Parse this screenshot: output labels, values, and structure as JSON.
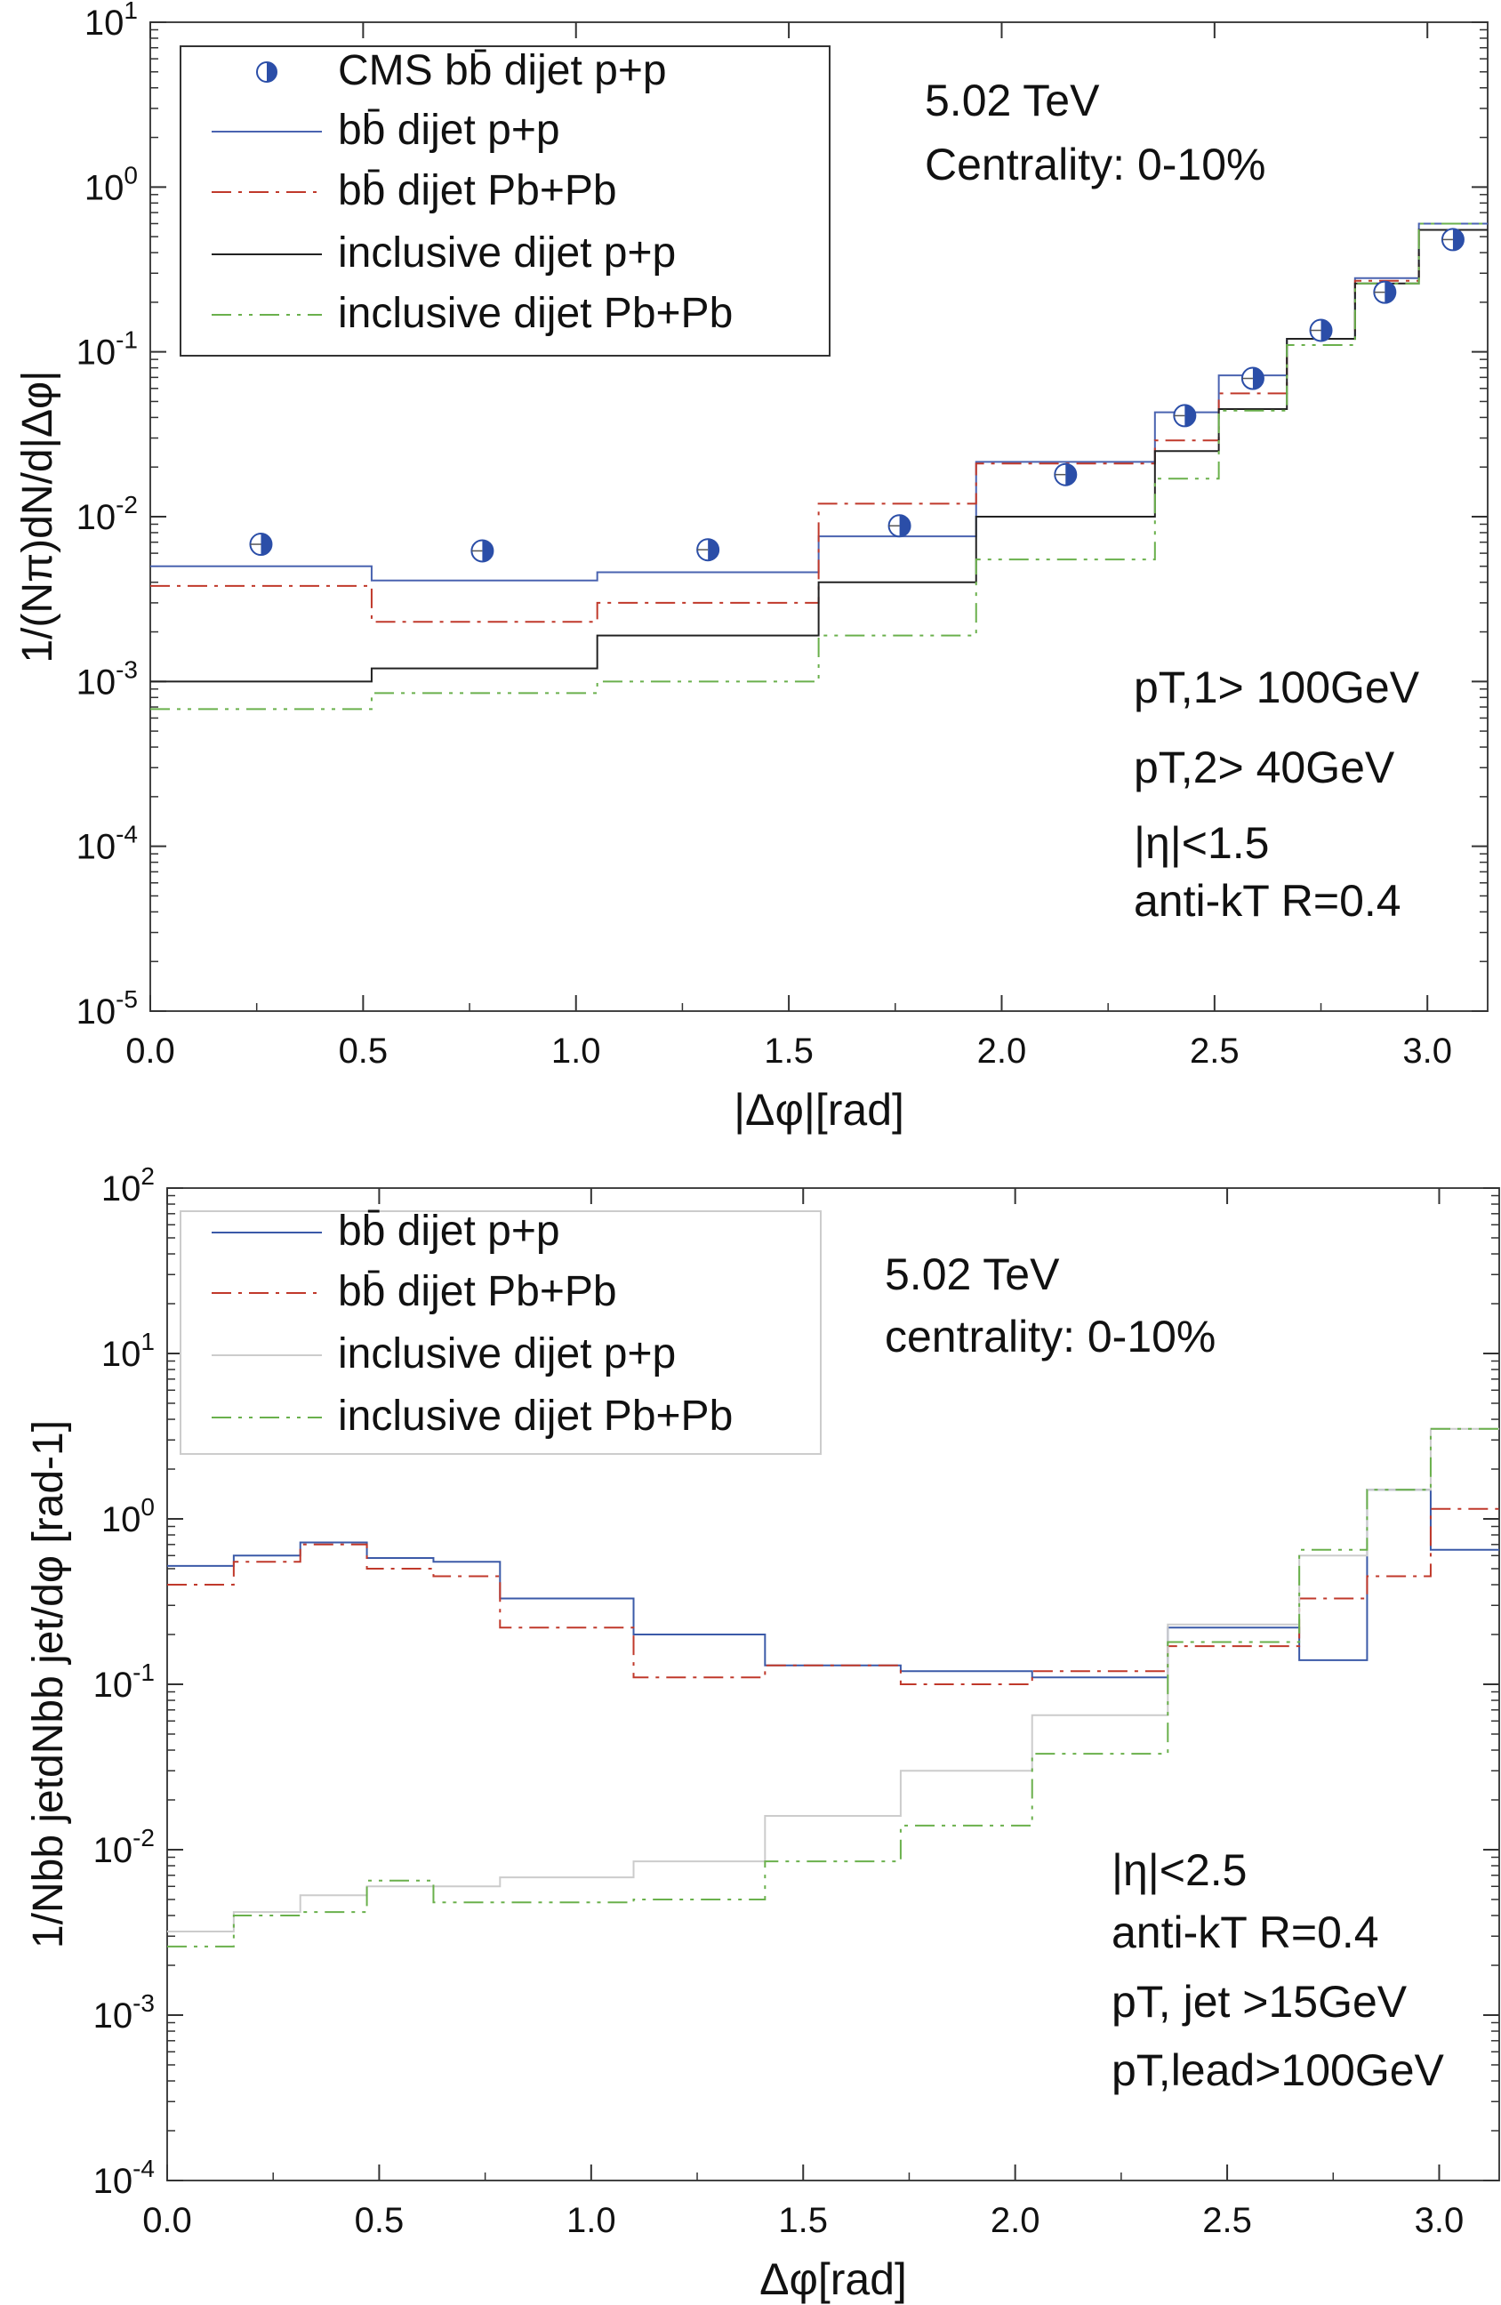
{
  "chart_data": [
    {
      "type": "line",
      "title": "",
      "xlabel": "|Δφ|[rad]",
      "ylabel": "1/(Nπ)dN/d|Δφ|",
      "xlim": [
        0,
        3.1416
      ],
      "ylim": [
        1e-05,
        10
      ],
      "yscale": "log",
      "xticks": [
        "0.0",
        "0.5",
        "1.0",
        "1.5",
        "2.0",
        "2.5",
        "3.0"
      ],
      "yticks": [
        "10-5",
        "10-4",
        "10-3",
        "10-2",
        "10-1",
        "100",
        "101"
      ],
      "legend_position": "top-left",
      "annotations": [
        "5.02 TeV",
        "Centrality: 0-10%",
        "pT,1> 100GeV",
        "pT,2> 40GeV",
        "|η|<1.5",
        "anti-kT R=0.4"
      ],
      "points": {
        "name": "CMS bb̄ dijet p+p",
        "color": "#2b4ea8",
        "x": [
          0.26,
          0.78,
          1.31,
          1.76,
          2.15,
          2.43,
          2.59,
          2.75,
          2.9,
          3.06
        ],
        "y": [
          0.0068,
          0.0062,
          0.0063,
          0.0088,
          0.018,
          0.041,
          0.069,
          0.135,
          0.23,
          0.48
        ]
      },
      "edges": [
        0,
        0.52,
        1.05,
        1.57,
        1.94,
        2.36,
        2.51,
        2.67,
        2.83,
        2.98,
        3.1416
      ],
      "series": [
        {
          "name": "bb̄ dijet p+p",
          "color": "#4a63b0",
          "dash": "",
          "values": [
            0.005,
            0.0041,
            0.0046,
            0.0076,
            0.0215,
            0.043,
            0.072,
            0.12,
            0.28,
            0.6
          ]
        },
        {
          "name": "bb̄ dijet Pb+Pb",
          "color": "#c0392b",
          "dash": "22,8,4,8",
          "values": [
            0.0038,
            0.0023,
            0.003,
            0.012,
            0.021,
            0.029,
            0.056,
            0.12,
            0.27,
            0.55
          ]
        },
        {
          "name": "inclusive dijet p+p",
          "color": "#222222",
          "dash": "",
          "values": [
            0.001,
            0.0012,
            0.0019,
            0.004,
            0.01,
            0.025,
            0.045,
            0.12,
            0.26,
            0.55
          ]
        },
        {
          "name": "inclusive dijet Pb+Pb",
          "color": "#6ab04c",
          "dash": "22,8,4,8,4,8",
          "values": [
            0.00068,
            0.00085,
            0.001,
            0.0019,
            0.0055,
            0.017,
            0.044,
            0.11,
            0.26,
            0.6
          ]
        }
      ]
    },
    {
      "type": "line",
      "title": "",
      "xlabel": "Δφ[rad]",
      "ylabel": "1/Nbb jetdNbb jet/dφ [rad-1]",
      "xlim": [
        0,
        3.1416
      ],
      "ylim": [
        0.0001,
        100
      ],
      "yscale": "log",
      "xticks": [
        "0.0",
        "0.5",
        "1.0",
        "1.5",
        "2.0",
        "2.5",
        "3.0"
      ],
      "yticks": [
        "10-4",
        "10-3",
        "10-2",
        "10-1",
        "100",
        "101",
        "102"
      ],
      "legend_position": "top-left",
      "annotations": [
        "5.02 TeV",
        "centrality: 0-10%",
        "|η|<2.5",
        "anti-kT R=0.4",
        "pT, jet >15GeV",
        "pT,lead>100GeV"
      ],
      "edges": [
        0,
        0.157,
        0.314,
        0.471,
        0.628,
        0.785,
        1.1,
        1.41,
        1.73,
        2.04,
        2.36,
        2.67,
        2.83,
        2.98,
        3.1416
      ],
      "series": [
        {
          "name": "bb̄ dijet p+p",
          "color": "#3b5aa8",
          "dash": "",
          "values": [
            0.52,
            0.6,
            0.72,
            0.58,
            0.55,
            0.33,
            0.2,
            0.13,
            0.12,
            0.11,
            0.22,
            0.14,
            1.5,
            0.65
          ]
        },
        {
          "name": "bb̄ dijet Pb+Pb",
          "color": "#c0392b",
          "dash": "22,8,4,8",
          "values": [
            0.4,
            0.55,
            0.7,
            0.5,
            0.45,
            0.22,
            0.11,
            0.13,
            0.1,
            0.12,
            0.17,
            0.33,
            0.45,
            1.15
          ]
        },
        {
          "name": "inclusive dijet p+p",
          "color": "#cccccc",
          "dash": "",
          "values": [
            0.0032,
            0.0042,
            0.0053,
            0.006,
            0.006,
            0.0068,
            0.0085,
            0.016,
            0.03,
            0.065,
            0.23,
            0.6,
            1.5,
            3.5
          ]
        },
        {
          "name": "inclusive dijet Pb+Pb",
          "color": "#6ab04c",
          "dash": "22,8,4,8,4,8",
          "values": [
            0.0026,
            0.004,
            0.0042,
            0.0065,
            0.0048,
            0.0048,
            0.005,
            0.0085,
            0.014,
            0.038,
            0.18,
            0.65,
            1.5,
            3.5
          ]
        }
      ]
    }
  ]
}
